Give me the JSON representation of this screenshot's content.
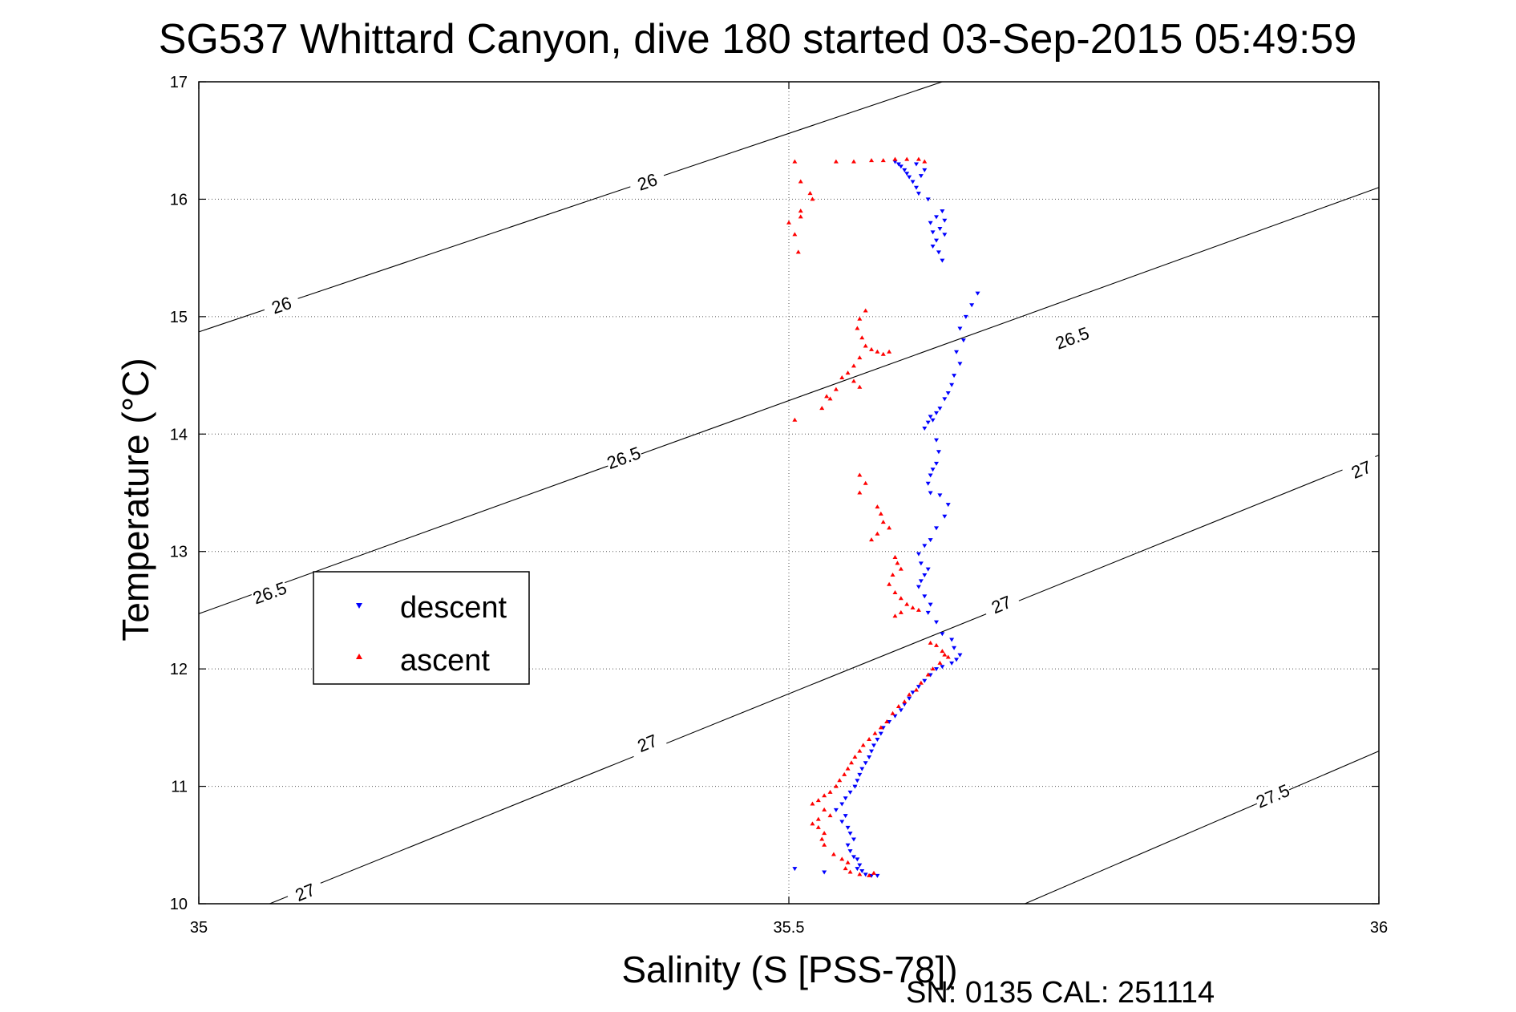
{
  "chart_data": {
    "type": "scatter",
    "title": "SG537 Whittard Canyon, dive 180 started 03-Sep-2015 05:49:59",
    "xlabel": "Salinity (S [PSS-78])",
    "ylabel": "Temperature (°C)",
    "xlim": [
      35,
      36
    ],
    "ylim": [
      10,
      17
    ],
    "x_ticks": [
      "35",
      "35.5",
      "36"
    ],
    "y_ticks": [
      "10",
      "11",
      "12",
      "13",
      "14",
      "15",
      "16",
      "17"
    ],
    "grid": true,
    "legend_position": "center-left",
    "footer": "SN: 0135  CAL: 251114",
    "density_contours": [
      {
        "label": "26",
        "segment": [
          [
            35,
            14.87
          ],
          [
            35.63,
            17
          ]
        ],
        "labels_at": [
          [
            35.07,
            15.1
          ],
          [
            35.38,
            16.15
          ]
        ]
      },
      {
        "label": "26.5",
        "segment": [
          [
            35,
            12.47
          ],
          [
            36,
            16.1
          ]
        ],
        "labels_at": [
          [
            35.06,
            12.65
          ],
          [
            35.36,
            13.8
          ],
          [
            35.74,
            14.82
          ]
        ]
      },
      {
        "label": "27",
        "segment": [
          [
            35.06,
            10
          ],
          [
            36,
            13.82
          ]
        ],
        "labels_at": [
          [
            35.09,
            10.1
          ],
          [
            35.38,
            11.37
          ],
          [
            35.68,
            12.55
          ],
          [
            35.985,
            13.7
          ]
        ]
      },
      {
        "label": "27.5",
        "segment": [
          [
            35.7,
            10
          ],
          [
            36,
            11.3
          ]
        ],
        "labels_at": [
          [
            35.91,
            10.92
          ]
        ]
      }
    ],
    "series": [
      {
        "name": "descent",
        "color": "#0000ff",
        "marker": "triangle-down",
        "points": [
          [
            35.59,
            16.32
          ],
          [
            35.593,
            16.3
          ],
          [
            35.595,
            16.28
          ],
          [
            35.598,
            16.25
          ],
          [
            35.6,
            16.22
          ],
          [
            35.602,
            16.19
          ],
          [
            35.605,
            16.15
          ],
          [
            35.608,
            16.1
          ],
          [
            35.61,
            16.05
          ],
          [
            35.608,
            16.3
          ],
          [
            35.615,
            16.25
          ],
          [
            35.612,
            16.2
          ],
          [
            35.618,
            16.0
          ],
          [
            35.62,
            15.8
          ],
          [
            35.622,
            15.72
          ],
          [
            35.625,
            15.65
          ],
          [
            35.622,
            15.6
          ],
          [
            35.627,
            15.55
          ],
          [
            35.63,
            15.48
          ],
          [
            35.628,
            15.75
          ],
          [
            35.632,
            15.7
          ],
          [
            35.625,
            15.85
          ],
          [
            35.63,
            15.9
          ],
          [
            35.632,
            15.82
          ],
          [
            35.66,
            15.2
          ],
          [
            35.655,
            15.1
          ],
          [
            35.65,
            15.0
          ],
          [
            35.645,
            14.9
          ],
          [
            35.648,
            14.8
          ],
          [
            35.642,
            14.7
          ],
          [
            35.645,
            14.6
          ],
          [
            35.64,
            14.5
          ],
          [
            35.638,
            14.42
          ],
          [
            35.635,
            14.35
          ],
          [
            35.632,
            14.3
          ],
          [
            35.628,
            14.22
          ],
          [
            35.625,
            14.18
          ],
          [
            35.622,
            14.12
          ],
          [
            35.618,
            14.1
          ],
          [
            35.615,
            14.05
          ],
          [
            35.62,
            14.15
          ],
          [
            35.625,
            13.95
          ],
          [
            35.627,
            13.85
          ],
          [
            35.625,
            13.75
          ],
          [
            35.622,
            13.7
          ],
          [
            35.62,
            13.65
          ],
          [
            35.618,
            13.58
          ],
          [
            35.62,
            13.5
          ],
          [
            35.628,
            13.48
          ],
          [
            35.635,
            13.4
          ],
          [
            35.632,
            13.3
          ],
          [
            35.625,
            13.2
          ],
          [
            35.62,
            13.1
          ],
          [
            35.615,
            13.05
          ],
          [
            35.61,
            12.98
          ],
          [
            35.612,
            12.9
          ],
          [
            35.618,
            12.85
          ],
          [
            35.615,
            12.8
          ],
          [
            35.612,
            12.75
          ],
          [
            35.61,
            12.7
          ],
          [
            35.615,
            12.62
          ],
          [
            35.62,
            12.55
          ],
          [
            35.618,
            12.48
          ],
          [
            35.625,
            12.4
          ],
          [
            35.63,
            12.3
          ],
          [
            35.638,
            12.25
          ],
          [
            35.64,
            12.18
          ],
          [
            35.645,
            12.12
          ],
          [
            35.642,
            12.08
          ],
          [
            35.638,
            12.05
          ],
          [
            35.63,
            12.02
          ],
          [
            35.625,
            12.0
          ],
          [
            35.62,
            11.95
          ],
          [
            35.615,
            11.9
          ],
          [
            35.61,
            11.85
          ],
          [
            35.605,
            11.8
          ],
          [
            35.602,
            11.75
          ],
          [
            35.598,
            11.7
          ],
          [
            35.595,
            11.65
          ],
          [
            35.59,
            11.6
          ],
          [
            35.585,
            11.55
          ],
          [
            35.58,
            11.5
          ],
          [
            35.578,
            11.45
          ],
          [
            35.575,
            11.4
          ],
          [
            35.572,
            11.35
          ],
          [
            35.57,
            11.3
          ],
          [
            35.568,
            11.25
          ],
          [
            35.565,
            11.2
          ],
          [
            35.562,
            11.15
          ],
          [
            35.56,
            11.1
          ],
          [
            35.558,
            11.05
          ],
          [
            35.556,
            11.0
          ],
          [
            35.552,
            10.95
          ],
          [
            35.548,
            10.9
          ],
          [
            35.545,
            10.85
          ],
          [
            35.54,
            10.8
          ],
          [
            35.548,
            10.75
          ],
          [
            35.545,
            10.7
          ],
          [
            35.55,
            10.65
          ],
          [
            35.552,
            10.6
          ],
          [
            35.555,
            10.55
          ],
          [
            35.55,
            10.5
          ],
          [
            35.552,
            10.45
          ],
          [
            35.555,
            10.4
          ],
          [
            35.558,
            10.38
          ],
          [
            35.56,
            10.33
          ],
          [
            35.558,
            10.3
          ],
          [
            35.562,
            10.28
          ],
          [
            35.565,
            10.25
          ],
          [
            35.57,
            10.24
          ],
          [
            35.575,
            10.24
          ],
          [
            35.505,
            10.3
          ],
          [
            35.53,
            10.27
          ]
        ]
      },
      {
        "name": "ascent",
        "color": "#ff0000",
        "marker": "triangle-up",
        "points": [
          [
            35.505,
            16.32
          ],
          [
            35.54,
            16.32
          ],
          [
            35.555,
            16.32
          ],
          [
            35.57,
            16.33
          ],
          [
            35.58,
            16.33
          ],
          [
            35.59,
            16.34
          ],
          [
            35.6,
            16.34
          ],
          [
            35.61,
            16.34
          ],
          [
            35.615,
            16.32
          ],
          [
            35.51,
            16.15
          ],
          [
            35.518,
            16.05
          ],
          [
            35.52,
            16.0
          ],
          [
            35.51,
            15.9
          ],
          [
            35.51,
            15.85
          ],
          [
            35.5,
            15.8
          ],
          [
            35.505,
            15.7
          ],
          [
            35.508,
            15.55
          ],
          [
            35.565,
            15.05
          ],
          [
            35.56,
            14.98
          ],
          [
            35.558,
            14.9
          ],
          [
            35.562,
            14.82
          ],
          [
            35.565,
            14.75
          ],
          [
            35.57,
            14.72
          ],
          [
            35.575,
            14.7
          ],
          [
            35.58,
            14.68
          ],
          [
            35.585,
            14.7
          ],
          [
            35.56,
            14.65
          ],
          [
            35.555,
            14.58
          ],
          [
            35.55,
            14.52
          ],
          [
            35.545,
            14.48
          ],
          [
            35.555,
            14.45
          ],
          [
            35.56,
            14.4
          ],
          [
            35.54,
            14.38
          ],
          [
            35.535,
            14.3
          ],
          [
            35.528,
            14.22
          ],
          [
            35.532,
            14.32
          ],
          [
            35.505,
            14.12
          ],
          [
            35.56,
            13.65
          ],
          [
            35.565,
            13.58
          ],
          [
            35.56,
            13.5
          ],
          [
            35.575,
            13.38
          ],
          [
            35.578,
            13.32
          ],
          [
            35.58,
            13.25
          ],
          [
            35.585,
            13.2
          ],
          [
            35.575,
            13.15
          ],
          [
            35.57,
            13.1
          ],
          [
            35.59,
            12.95
          ],
          [
            35.592,
            12.9
          ],
          [
            35.595,
            12.85
          ],
          [
            35.588,
            12.8
          ],
          [
            35.585,
            12.72
          ],
          [
            35.59,
            12.65
          ],
          [
            35.595,
            12.6
          ],
          [
            35.6,
            12.55
          ],
          [
            35.605,
            12.52
          ],
          [
            35.61,
            12.5
          ],
          [
            35.595,
            12.48
          ],
          [
            35.59,
            12.45
          ],
          [
            35.62,
            12.22
          ],
          [
            35.625,
            12.2
          ],
          [
            35.63,
            12.15
          ],
          [
            35.632,
            12.12
          ],
          [
            35.635,
            12.1
          ],
          [
            35.628,
            12.05
          ],
          [
            35.622,
            12.0
          ],
          [
            35.618,
            11.95
          ],
          [
            35.612,
            11.88
          ],
          [
            35.608,
            11.82
          ],
          [
            35.602,
            11.78
          ],
          [
            35.598,
            11.72
          ],
          [
            35.593,
            11.68
          ],
          [
            35.588,
            11.62
          ],
          [
            35.583,
            11.55
          ],
          [
            35.578,
            11.5
          ],
          [
            35.573,
            11.45
          ],
          [
            35.568,
            11.4
          ],
          [
            35.563,
            11.35
          ],
          [
            35.56,
            11.3
          ],
          [
            35.556,
            11.25
          ],
          [
            35.553,
            11.2
          ],
          [
            35.55,
            11.15
          ],
          [
            35.547,
            11.1
          ],
          [
            35.543,
            11.05
          ],
          [
            35.54,
            11.0
          ],
          [
            35.535,
            10.95
          ],
          [
            35.53,
            10.92
          ],
          [
            35.525,
            10.88
          ],
          [
            35.52,
            10.85
          ],
          [
            35.53,
            10.8
          ],
          [
            35.535,
            10.75
          ],
          [
            35.525,
            10.72
          ],
          [
            35.52,
            10.68
          ],
          [
            35.525,
            10.65
          ],
          [
            35.53,
            10.6
          ],
          [
            35.528,
            10.55
          ],
          [
            35.53,
            10.5
          ],
          [
            35.538,
            10.42
          ],
          [
            35.545,
            10.38
          ],
          [
            35.55,
            10.35
          ],
          [
            35.548,
            10.3
          ],
          [
            35.552,
            10.27
          ],
          [
            35.56,
            10.25
          ],
          [
            35.568,
            10.24
          ],
          [
            35.572,
            10.26
          ]
        ]
      }
    ]
  }
}
